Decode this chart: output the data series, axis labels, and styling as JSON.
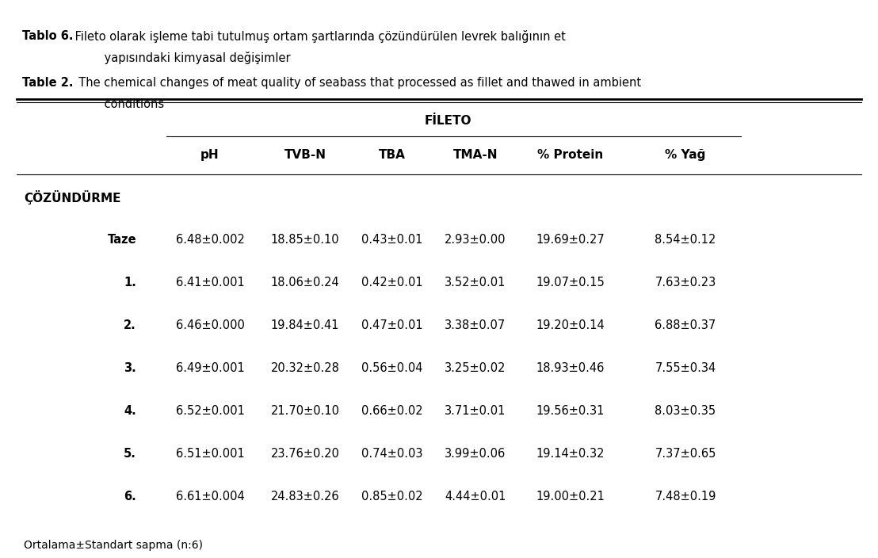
{
  "title_tr_bold": "Tablo 6.",
  "title_tr_text": " Fileto olarak işleme tabi tutulmuş ortam şartlarında çözündürülen levrek balığının et\n         yapısındaki kimyasal değişimler",
  "title_en_bold": "Table 2.",
  "title_en_text": "  The chemical changes of meat quality of seabass that processed as fillet and thawed in ambient\n         conditions",
  "group_header": "FİLETO",
  "row_header_label": "ÇÖZÜNDÜRME",
  "col_headers": [
    "pH",
    "TVB-N",
    "TBA",
    "TMA-N",
    "% Protein",
    "% Yağ"
  ],
  "row_labels": [
    "Taze",
    "1.",
    "2.",
    "3.",
    "4.",
    "5.",
    "6."
  ],
  "table_data": [
    [
      "6.48±0.002",
      "18.85±0.10",
      "0.43±0.01",
      "2.93±0.00",
      "19.69±0.27",
      "8.54±0.12"
    ],
    [
      "6.41±0.001",
      "18.06±0.24",
      "0.42±0.01",
      "3.52±0.01",
      "19.07±0.15",
      "7.63±0.23"
    ],
    [
      "6.46±0.000",
      "19.84±0.41",
      "0.47±0.01",
      "3.38±0.07",
      "19.20±0.14",
      "6.88±0.37"
    ],
    [
      "6.49±0.001",
      "20.32±0.28",
      "0.56±0.04",
      "3.25±0.02",
      "18.93±0.46",
      "7.55±0.34"
    ],
    [
      "6.52±0.001",
      "21.70±0.10",
      "0.66±0.02",
      "3.71±0.01",
      "19.56±0.31",
      "8.03±0.35"
    ],
    [
      "6.51±0.001",
      "23.76±0.20",
      "0.74±0.03",
      "3.99±0.06",
      "19.14±0.32",
      "7.37±0.65"
    ],
    [
      "6.61±0.004",
      "24.83±0.26",
      "0.85±0.02",
      "4.44±0.01",
      "19.00±0.21",
      "7.48±0.19"
    ]
  ],
  "footnote": "Ortalama±Standart sapma (n:6)",
  "bg_color": "#ffffff",
  "text_color": "#000000",
  "font_size_title": 10.5,
  "font_size_header": 11,
  "font_size_data": 10.5,
  "font_size_footnote": 10
}
